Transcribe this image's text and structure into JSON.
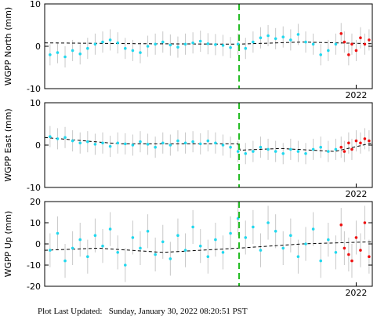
{
  "chart_data": [
    {
      "type": "scatter",
      "ylabel": "WGPP North (mm)",
      "xlim": [
        2019.1,
        2022.15
      ],
      "xticks": [
        2022
      ],
      "ylim": [
        -10,
        10
      ],
      "yticks": [
        -10,
        0,
        10
      ],
      "vline": {
        "x": 2020.91,
        "color": "#22bb22"
      },
      "errorbar_color": "#c8c8c8",
      "series": [
        {
          "color": "#22d8ee",
          "x": [
            2019.15,
            2019.22,
            2019.29,
            2019.36,
            2019.43,
            2019.5,
            2019.57,
            2019.64,
            2019.71,
            2019.78,
            2019.85,
            2019.92,
            2019.99,
            2020.06,
            2020.13,
            2020.2,
            2020.27,
            2020.34,
            2020.41,
            2020.48,
            2020.55,
            2020.62,
            2020.69,
            2020.76,
            2020.83,
            2020.9,
            2020.97,
            2021.04,
            2021.11,
            2021.18,
            2021.25,
            2021.32,
            2021.39,
            2021.46,
            2021.53,
            2021.6,
            2021.67,
            2021.74,
            2021.81
          ],
          "values": [
            -2,
            -1.5,
            -2.5,
            -1,
            -1.8,
            -0.5,
            0.5,
            1,
            1.5,
            0.8,
            -0.5,
            -1,
            -1.5,
            0,
            0.5,
            1,
            0.3,
            -0.2,
            0.5,
            0.8,
            1.2,
            0.6,
            0.4,
            0.2,
            -0.3,
            0.5,
            -0.5,
            1,
            2,
            2.5,
            1.8,
            2.2,
            1.5,
            2.8,
            1,
            0.5,
            -2,
            -1,
            0.5
          ],
          "errors": [
            2.5,
            2.5,
            2.5,
            2.5,
            2.5,
            2.5,
            2.5,
            2.5,
            2.5,
            2.5,
            2.5,
            2.5,
            2.5,
            2.5,
            2.5,
            2.5,
            2.5,
            2.5,
            2.5,
            2.5,
            2.5,
            2.5,
            2.5,
            2.5,
            2.5,
            2.5,
            2.5,
            2.5,
            2.5,
            2.5,
            2.5,
            2.5,
            2.5,
            2.5,
            2.5,
            2.5,
            2.5,
            2.5,
            2.5
          ]
        },
        {
          "color": "#ee1111",
          "x": [
            2021.86,
            2021.89,
            2021.93,
            2021.96,
            2022.0,
            2022.04,
            2022.08,
            2022.12
          ],
          "values": [
            3,
            1,
            -2,
            0.5,
            -1,
            2,
            0.5,
            1.5
          ],
          "errors": [
            2.5,
            2.5,
            2.5,
            2.5,
            2.5,
            2.5,
            2.5,
            2.5
          ]
        }
      ],
      "lines": [
        {
          "color": "#000000",
          "x": [
            2019.1,
            2020.0,
            2020.9,
            2021.5,
            2022.15
          ],
          "values": [
            0.8,
            0.6,
            0.5,
            1,
            0.6
          ]
        }
      ]
    },
    {
      "type": "scatter",
      "ylabel": "WGPP East (mm)",
      "xlim": [
        2019.1,
        2022.15
      ],
      "xticks": [
        2022
      ],
      "ylim": [
        -10,
        10
      ],
      "yticks": [
        -10,
        0,
        10
      ],
      "vline": {
        "x": 2020.91,
        "color": "#22bb22"
      },
      "errorbar_color": "#c8c8c8",
      "series": [
        {
          "color": "#22d8ee",
          "x": [
            2019.15,
            2019.22,
            2019.29,
            2019.36,
            2019.43,
            2019.5,
            2019.57,
            2019.64,
            2019.71,
            2019.78,
            2019.85,
            2019.92,
            2019.99,
            2020.06,
            2020.13,
            2020.2,
            2020.27,
            2020.34,
            2020.41,
            2020.48,
            2020.55,
            2020.62,
            2020.69,
            2020.76,
            2020.83,
            2020.9,
            2020.97,
            2021.04,
            2021.11,
            2021.18,
            2021.25,
            2021.32,
            2021.39,
            2021.46,
            2021.53,
            2021.6,
            2021.67,
            2021.74,
            2021.81
          ],
          "values": [
            2,
            1.5,
            1.8,
            1,
            0.5,
            0.8,
            0.2,
            0.5,
            -0.3,
            0.5,
            0.3,
            0,
            0.8,
            0.2,
            -0.5,
            0.5,
            0,
            1,
            0.5,
            0.8,
            0.3,
            1,
            0.5,
            0,
            -0.5,
            -1.5,
            -2,
            -1.5,
            -0.5,
            -1,
            -1.5,
            -2,
            -1,
            -1.5,
            -2,
            -1,
            -0.5,
            -1.5,
            -1
          ],
          "errors": [
            2.5,
            2.5,
            2.5,
            2.5,
            2.5,
            2.5,
            2.5,
            2.5,
            2.5,
            2.5,
            2.5,
            2.5,
            2.5,
            2.5,
            2.5,
            2.5,
            2.5,
            2.5,
            2.5,
            2.5,
            2.5,
            2.5,
            2.5,
            2.5,
            2.5,
            2.5,
            2.5,
            2.5,
            2.5,
            2.5,
            2.5,
            2.5,
            2.5,
            2.5,
            2.5,
            2.5,
            2.5,
            2.5,
            2.5
          ]
        },
        {
          "color": "#ee1111",
          "x": [
            2021.86,
            2021.89,
            2021.93,
            2021.96,
            2022.0,
            2022.04,
            2022.08,
            2022.12
          ],
          "values": [
            -0.5,
            -1.5,
            0.5,
            -1,
            1,
            0.5,
            1.5,
            1
          ],
          "errors": [
            2.5,
            2.5,
            2.5,
            2.5,
            2.5,
            2.5,
            2.5,
            2.5
          ]
        }
      ],
      "lines": [
        {
          "color": "#000000",
          "x": [
            2019.1,
            2019.8,
            2020.9,
            2020.92,
            2021.3,
            2021.8,
            2022.15
          ],
          "values": [
            1.8,
            0.3,
            0.3,
            -1.2,
            -0.8,
            -1.5,
            0.5
          ]
        }
      ]
    },
    {
      "type": "scatter",
      "ylabel": "WGPP Up (mm)",
      "xlim": [
        2019.1,
        2022.15
      ],
      "xticks": [
        2022
      ],
      "ylim": [
        -20,
        20
      ],
      "yticks": [
        -20,
        -10,
        0,
        10,
        20
      ],
      "vline": {
        "x": 2020.91,
        "color": "#22bb22"
      },
      "errorbar_color": "#c8c8c8",
      "series": [
        {
          "color": "#22d8ee",
          "x": [
            2019.15,
            2019.22,
            2019.29,
            2019.36,
            2019.43,
            2019.5,
            2019.57,
            2019.64,
            2019.71,
            2019.78,
            2019.85,
            2019.92,
            2019.99,
            2020.06,
            2020.13,
            2020.2,
            2020.27,
            2020.34,
            2020.41,
            2020.48,
            2020.55,
            2020.62,
            2020.69,
            2020.76,
            2020.83,
            2020.9,
            2020.97,
            2021.04,
            2021.11,
            2021.18,
            2021.25,
            2021.32,
            2021.39,
            2021.46,
            2021.53,
            2021.6,
            2021.67,
            2021.74,
            2021.81
          ],
          "values": [
            -3,
            5,
            -8,
            -2,
            2,
            -6,
            4,
            -1,
            7,
            -4,
            -10,
            3,
            -2,
            6,
            -5,
            1,
            -7,
            4,
            -3,
            8,
            -1,
            -6,
            2,
            -4,
            5,
            12,
            3,
            8,
            -3,
            10,
            6,
            -2,
            4,
            -6,
            0,
            7,
            -8,
            2,
            -4
          ],
          "errors": [
            8,
            8,
            8,
            8,
            8,
            8,
            8,
            8,
            8,
            8,
            8,
            8,
            8,
            8,
            8,
            8,
            8,
            8,
            8,
            8,
            8,
            8,
            8,
            8,
            8,
            8,
            8,
            8,
            8,
            8,
            8,
            8,
            8,
            8,
            8,
            8,
            8,
            8,
            8
          ]
        },
        {
          "color": "#ee1111",
          "x": [
            2021.86,
            2021.89,
            2021.93,
            2021.96,
            2022.0,
            2022.04,
            2022.08,
            2022.12
          ],
          "values": [
            9,
            -2,
            -5,
            -8,
            3,
            -3,
            10,
            -6
          ],
          "errors": [
            8,
            8,
            8,
            8,
            8,
            8,
            8,
            8
          ]
        }
      ],
      "lines": [
        {
          "color": "#000000",
          "x": [
            2019.1,
            2019.6,
            2020.2,
            2020.9,
            2021.5,
            2022.15
          ],
          "values": [
            -3,
            -2,
            -4,
            -2,
            0,
            1
          ]
        }
      ]
    }
  ],
  "footer": "Plot Last Updated:   Sunday, January 30, 2022 08:20:51 PST"
}
